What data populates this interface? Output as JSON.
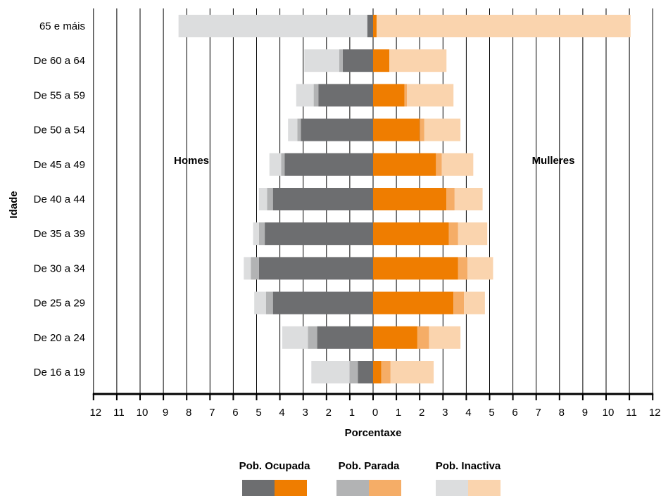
{
  "chart_data": {
    "type": "bar",
    "orientation": "horizontal",
    "layout": "population-pyramid",
    "xlabel": "Porcentaxe",
    "ylabel": "Idade",
    "xlim": [
      -12,
      12
    ],
    "x_ticks": [
      12,
      11,
      10,
      9,
      8,
      7,
      6,
      5,
      4,
      3,
      2,
      1,
      0,
      1,
      2,
      3,
      4,
      5,
      6,
      7,
      8,
      9,
      10,
      11,
      12
    ],
    "grid": "vertical",
    "side_labels": {
      "left": "Homes",
      "right": "Mulleres"
    },
    "categories": [
      "65 e máis",
      "De 60 a 64",
      "De 55 a 59",
      "De 50 a 54",
      "De 45 a 49",
      "De 40 a 44",
      "De 35 a 39",
      "De 30 a 34",
      "De 25 a 29",
      "De 20 a 24",
      "De 16 a 19"
    ],
    "series": [
      {
        "name": "Pob. Ocupada",
        "sex": "Homes",
        "values": [
          0.25,
          1.3,
          2.35,
          3.1,
          3.8,
          4.3,
          4.65,
          4.9,
          4.3,
          2.4,
          0.65
        ]
      },
      {
        "name": "Pob. Parada",
        "sex": "Homes",
        "values": [
          0.0,
          0.15,
          0.2,
          0.15,
          0.15,
          0.25,
          0.25,
          0.35,
          0.3,
          0.4,
          0.35
        ]
      },
      {
        "name": "Pob. Inactiva",
        "sex": "Homes",
        "values": [
          8.1,
          1.5,
          0.75,
          0.4,
          0.5,
          0.35,
          0.25,
          0.3,
          0.5,
          1.1,
          1.65
        ]
      },
      {
        "name": "Pob. Ocupada",
        "sex": "Mulleres",
        "values": [
          0.15,
          0.7,
          1.35,
          2.0,
          2.7,
          3.15,
          3.25,
          3.65,
          3.45,
          1.9,
          0.35
        ]
      },
      {
        "name": "Pob. Parada",
        "sex": "Mulleres",
        "values": [
          0.0,
          0.0,
          0.1,
          0.2,
          0.25,
          0.35,
          0.4,
          0.4,
          0.45,
          0.5,
          0.4
        ]
      },
      {
        "name": "Pob. Inactiva",
        "sex": "Mulleres",
        "values": [
          10.9,
          2.45,
          2.0,
          1.55,
          1.35,
          1.2,
          1.25,
          1.1,
          0.9,
          1.35,
          1.85
        ]
      }
    ],
    "legend": {
      "placement": "bottom",
      "entries": [
        {
          "name": "Pob. Ocupada",
          "colors": [
            "#6d6e70",
            "#ef7d00"
          ]
        },
        {
          "name": "Pob. Parada",
          "colors": [
            "#b2b3b4",
            "#f5ad67"
          ]
        },
        {
          "name": "Pob. Inactiva",
          "colors": [
            "#dcddde",
            "#fad4ae"
          ]
        }
      ]
    },
    "colors": {
      "Homes": {
        "Pob. Ocupada": "#6d6e70",
        "Pob. Parada": "#b2b3b4",
        "Pob. Inactiva": "#dcddde"
      },
      "Mulleres": {
        "Pob. Ocupada": "#ef7d00",
        "Pob. Parada": "#f5ad67",
        "Pob. Inactiva": "#fad4ae"
      }
    }
  }
}
